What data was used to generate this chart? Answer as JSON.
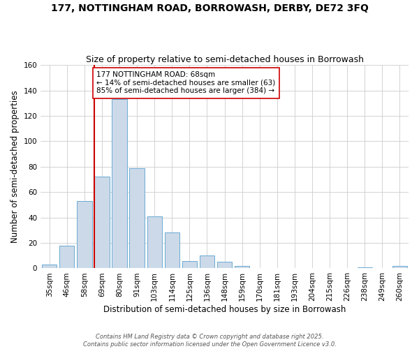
{
  "title": "177, NOTTINGHAM ROAD, BORROWASH, DERBY, DE72 3FQ",
  "subtitle": "Size of property relative to semi-detached houses in Borrowash",
  "xlabel": "Distribution of semi-detached houses by size in Borrowash",
  "ylabel": "Number of semi-detached properties",
  "bar_labels": [
    "35sqm",
    "46sqm",
    "58sqm",
    "69sqm",
    "80sqm",
    "91sqm",
    "103sqm",
    "114sqm",
    "125sqm",
    "136sqm",
    "148sqm",
    "159sqm",
    "170sqm",
    "181sqm",
    "193sqm",
    "204sqm",
    "215sqm",
    "226sqm",
    "238sqm",
    "249sqm",
    "260sqm"
  ],
  "bar_values": [
    3,
    18,
    53,
    72,
    133,
    79,
    41,
    28,
    6,
    10,
    5,
    2,
    0,
    0,
    0,
    0,
    0,
    0,
    1,
    0,
    2
  ],
  "bar_color": "#ccd9e8",
  "bar_edge_color": "#6aaad4",
  "ylim": [
    0,
    160
  ],
  "yticks": [
    0,
    20,
    40,
    60,
    80,
    100,
    120,
    140,
    160
  ],
  "vline_x_index": 3,
  "vline_color": "#cc0000",
  "annotation_text": "177 NOTTINGHAM ROAD: 68sqm\n← 14% of semi-detached houses are smaller (63)\n85% of semi-detached houses are larger (384) →",
  "annotation_box_color": "#ffffff",
  "annotation_box_edge_color": "#cc0000",
  "footer_line1": "Contains HM Land Registry data © Crown copyright and database right 2025.",
  "footer_line2": "Contains public sector information licensed under the Open Government Licence v3.0.",
  "background_color": "#ffffff",
  "plot_bg_color": "#ffffff",
  "grid_color": "#cccccc",
  "title_fontsize": 10,
  "subtitle_fontsize": 9,
  "axis_label_fontsize": 8.5,
  "tick_fontsize": 7.5,
  "annotation_fontsize": 7.5,
  "footer_fontsize": 6
}
